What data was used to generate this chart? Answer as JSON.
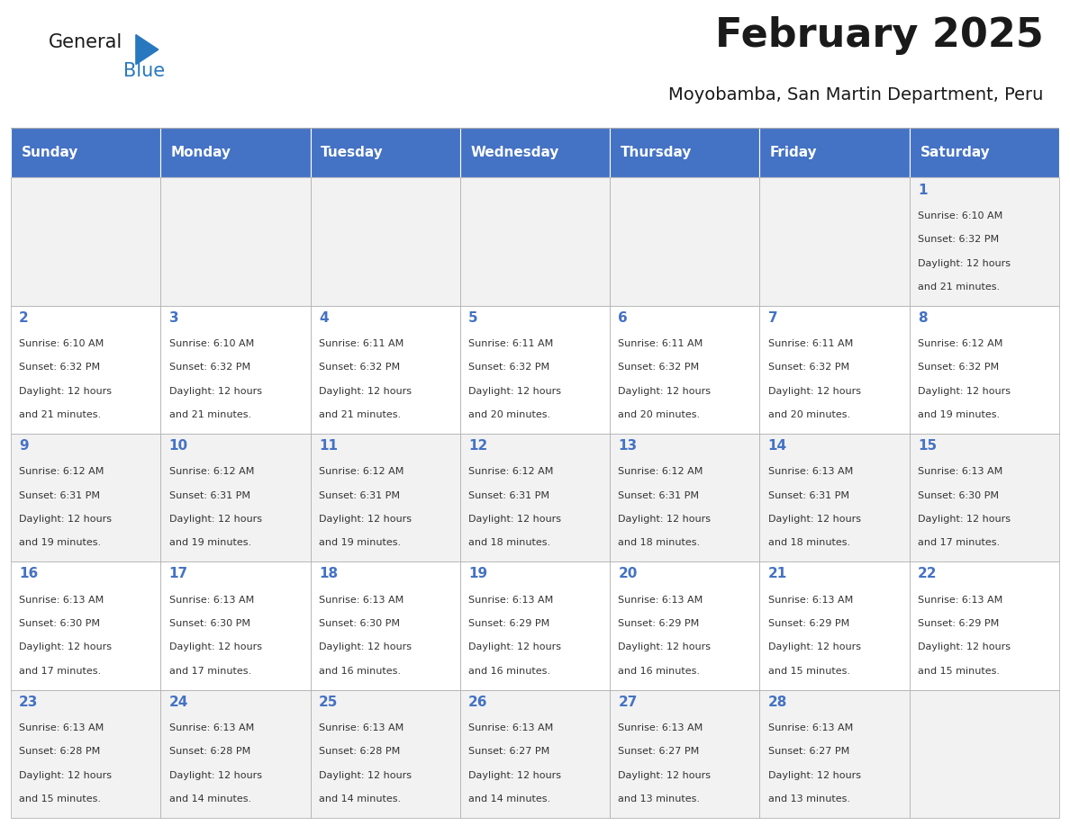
{
  "title": "February 2025",
  "subtitle": "Moyobamba, San Martin Department, Peru",
  "days_of_week": [
    "Sunday",
    "Monday",
    "Tuesday",
    "Wednesday",
    "Thursday",
    "Friday",
    "Saturday"
  ],
  "header_bg": "#4472C4",
  "header_text": "#FFFFFF",
  "row_bg_even": "#F2F2F2",
  "row_bg_odd": "#FFFFFF",
  "cell_border": "#AAAAAA",
  "day_number_color": "#4472C4",
  "text_color": "#333333",
  "title_color": "#1a1a1a",
  "logo_general_color": "#1a1a1a",
  "logo_blue_color": "#2878C0",
  "weeks": [
    [
      {
        "day": null,
        "info": null
      },
      {
        "day": null,
        "info": null
      },
      {
        "day": null,
        "info": null
      },
      {
        "day": null,
        "info": null
      },
      {
        "day": null,
        "info": null
      },
      {
        "day": null,
        "info": null
      },
      {
        "day": 1,
        "info": "Sunrise: 6:10 AM\nSunset: 6:32 PM\nDaylight: 12 hours\nand 21 minutes."
      }
    ],
    [
      {
        "day": 2,
        "info": "Sunrise: 6:10 AM\nSunset: 6:32 PM\nDaylight: 12 hours\nand 21 minutes."
      },
      {
        "day": 3,
        "info": "Sunrise: 6:10 AM\nSunset: 6:32 PM\nDaylight: 12 hours\nand 21 minutes."
      },
      {
        "day": 4,
        "info": "Sunrise: 6:11 AM\nSunset: 6:32 PM\nDaylight: 12 hours\nand 21 minutes."
      },
      {
        "day": 5,
        "info": "Sunrise: 6:11 AM\nSunset: 6:32 PM\nDaylight: 12 hours\nand 20 minutes."
      },
      {
        "day": 6,
        "info": "Sunrise: 6:11 AM\nSunset: 6:32 PM\nDaylight: 12 hours\nand 20 minutes."
      },
      {
        "day": 7,
        "info": "Sunrise: 6:11 AM\nSunset: 6:32 PM\nDaylight: 12 hours\nand 20 minutes."
      },
      {
        "day": 8,
        "info": "Sunrise: 6:12 AM\nSunset: 6:32 PM\nDaylight: 12 hours\nand 19 minutes."
      }
    ],
    [
      {
        "day": 9,
        "info": "Sunrise: 6:12 AM\nSunset: 6:31 PM\nDaylight: 12 hours\nand 19 minutes."
      },
      {
        "day": 10,
        "info": "Sunrise: 6:12 AM\nSunset: 6:31 PM\nDaylight: 12 hours\nand 19 minutes."
      },
      {
        "day": 11,
        "info": "Sunrise: 6:12 AM\nSunset: 6:31 PM\nDaylight: 12 hours\nand 19 minutes."
      },
      {
        "day": 12,
        "info": "Sunrise: 6:12 AM\nSunset: 6:31 PM\nDaylight: 12 hours\nand 18 minutes."
      },
      {
        "day": 13,
        "info": "Sunrise: 6:12 AM\nSunset: 6:31 PM\nDaylight: 12 hours\nand 18 minutes."
      },
      {
        "day": 14,
        "info": "Sunrise: 6:13 AM\nSunset: 6:31 PM\nDaylight: 12 hours\nand 18 minutes."
      },
      {
        "day": 15,
        "info": "Sunrise: 6:13 AM\nSunset: 6:30 PM\nDaylight: 12 hours\nand 17 minutes."
      }
    ],
    [
      {
        "day": 16,
        "info": "Sunrise: 6:13 AM\nSunset: 6:30 PM\nDaylight: 12 hours\nand 17 minutes."
      },
      {
        "day": 17,
        "info": "Sunrise: 6:13 AM\nSunset: 6:30 PM\nDaylight: 12 hours\nand 17 minutes."
      },
      {
        "day": 18,
        "info": "Sunrise: 6:13 AM\nSunset: 6:30 PM\nDaylight: 12 hours\nand 16 minutes."
      },
      {
        "day": 19,
        "info": "Sunrise: 6:13 AM\nSunset: 6:29 PM\nDaylight: 12 hours\nand 16 minutes."
      },
      {
        "day": 20,
        "info": "Sunrise: 6:13 AM\nSunset: 6:29 PM\nDaylight: 12 hours\nand 16 minutes."
      },
      {
        "day": 21,
        "info": "Sunrise: 6:13 AM\nSunset: 6:29 PM\nDaylight: 12 hours\nand 15 minutes."
      },
      {
        "day": 22,
        "info": "Sunrise: 6:13 AM\nSunset: 6:29 PM\nDaylight: 12 hours\nand 15 minutes."
      }
    ],
    [
      {
        "day": 23,
        "info": "Sunrise: 6:13 AM\nSunset: 6:28 PM\nDaylight: 12 hours\nand 15 minutes."
      },
      {
        "day": 24,
        "info": "Sunrise: 6:13 AM\nSunset: 6:28 PM\nDaylight: 12 hours\nand 14 minutes."
      },
      {
        "day": 25,
        "info": "Sunrise: 6:13 AM\nSunset: 6:28 PM\nDaylight: 12 hours\nand 14 minutes."
      },
      {
        "day": 26,
        "info": "Sunrise: 6:13 AM\nSunset: 6:27 PM\nDaylight: 12 hours\nand 14 minutes."
      },
      {
        "day": 27,
        "info": "Sunrise: 6:13 AM\nSunset: 6:27 PM\nDaylight: 12 hours\nand 13 minutes."
      },
      {
        "day": 28,
        "info": "Sunrise: 6:13 AM\nSunset: 6:27 PM\nDaylight: 12 hours\nand 13 minutes."
      },
      {
        "day": null,
        "info": null
      }
    ]
  ],
  "fig_width": 11.88,
  "fig_height": 9.18,
  "dpi": 100,
  "header_fontsize": 11,
  "day_num_fontsize": 11,
  "cell_text_fontsize": 8,
  "title_fontsize": 32,
  "subtitle_fontsize": 14
}
